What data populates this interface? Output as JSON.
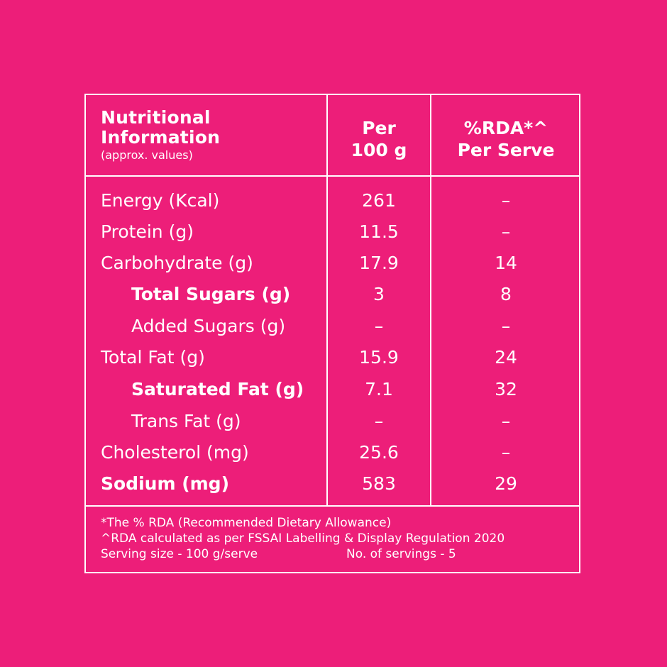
{
  "colors": {
    "background": "#ed1e79",
    "foreground": "#ffffff"
  },
  "header": {
    "title_line1": "Nutritional",
    "title_line2": "Information",
    "subtitle": "(approx. values)",
    "col1_line1": "Per",
    "col1_line2": "100 g",
    "col2_line1": "%RDA*^",
    "col2_line2": "Per Serve"
  },
  "rows": [
    {
      "name": "Energy (Kcal)",
      "per100": "261",
      "rda": "–"
    },
    {
      "name": "Protein (g)",
      "per100": "11.5",
      "rda": "–"
    },
    {
      "name": "Carbohydrate (g)",
      "per100": "17.9",
      "rda": "14"
    },
    {
      "name": "Total Sugars (g)",
      "per100": "3",
      "rda": "8"
    },
    {
      "name": "Added Sugars (g)",
      "per100": "–",
      "rda": "–"
    },
    {
      "name": "Total Fat (g)",
      "per100": "15.9",
      "rda": "24"
    },
    {
      "name": "Saturated Fat (g)",
      "per100": "7.1",
      "rda": "32"
    },
    {
      "name": "Trans Fat (g)",
      "per100": "–",
      "rda": "–"
    },
    {
      "name": "Cholesterol (mg)",
      "per100": "25.6",
      "rda": "–"
    },
    {
      "name": "Sodium (mg)",
      "per100": "583",
      "rda": "29"
    }
  ],
  "footer": {
    "note1": "*The % RDA (Recommended Dietary Allowance)",
    "note2": "^RDA calculated as per FSSAI Labelling & Display Regulation 2020",
    "serving_size": "Serving size - 100 g/serve",
    "servings": "No. of servings - 5"
  }
}
